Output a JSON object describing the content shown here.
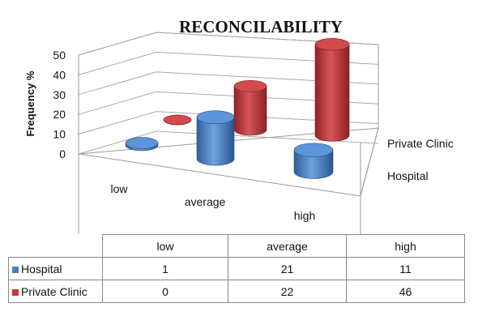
{
  "chart_data": {
    "type": "bar",
    "style": "3d-cylinder",
    "title": "RECONCILABILITY",
    "ylabel": "Frequency %",
    "ylim": [
      0,
      50
    ],
    "yticks": [
      "0",
      "10",
      "20",
      "30",
      "40",
      "50"
    ],
    "categories": [
      "low",
      "average",
      "high"
    ],
    "series": [
      {
        "name": "Hospital",
        "values": [
          1,
          21,
          11
        ],
        "color": "#4a7fc1"
      },
      {
        "name": "Private Clinic",
        "values": [
          0,
          22,
          46
        ],
        "color": "#c0393b"
      }
    ],
    "table": {
      "headers": [
        "low",
        "average",
        "high"
      ],
      "rows": [
        {
          "label": "Hospital",
          "values": [
            "1",
            "21",
            "11"
          ]
        },
        {
          "label": "Private Clinic",
          "values": [
            "0",
            "22",
            "46"
          ]
        }
      ]
    }
  }
}
